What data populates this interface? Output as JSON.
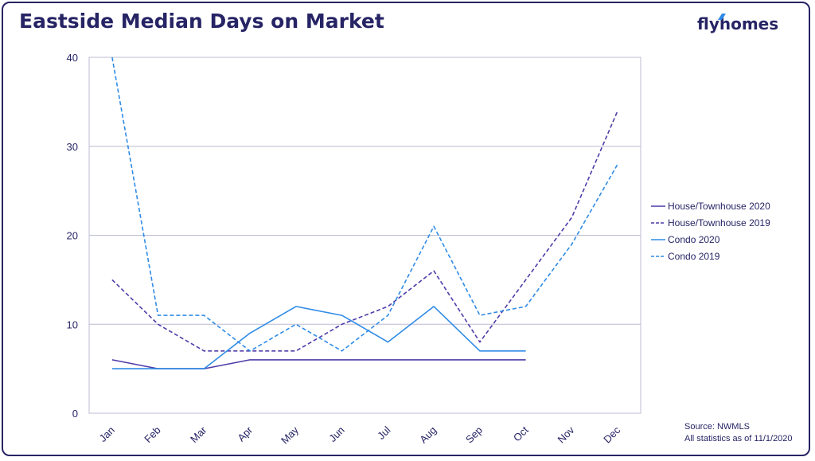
{
  "title": "Eastside Median Days on Market",
  "logo": "flyhomes",
  "source_lines": [
    "Source: NWMLS",
    "All statistics as of 11/1/2020"
  ],
  "colors": {
    "frame": "#262465",
    "house": "#4f3ba8",
    "condo": "#2f8be6",
    "grid": "#bcbcd4"
  },
  "chart_data": {
    "type": "line",
    "title": "Eastside Median Days on Market",
    "categories": [
      "Jan",
      "Feb",
      "Mar",
      "Apr",
      "May",
      "Jun",
      "Jul",
      "Aug",
      "Sep",
      "Oct",
      "Nov",
      "Dec"
    ],
    "ylim": [
      0,
      40
    ],
    "yticks": [
      0,
      10,
      20,
      30,
      40
    ],
    "grid": true,
    "legend": "right",
    "series": [
      {
        "name": "House/Townhouse 2020",
        "color": "#4f3ba8",
        "dashed": false,
        "values": [
          6,
          5,
          5,
          6,
          6,
          6,
          6,
          6,
          6,
          6,
          null,
          null
        ]
      },
      {
        "name": "House/Townhouse 2019",
        "color": "#4f3ba8",
        "dashed": true,
        "values": [
          15,
          10,
          7,
          7,
          7,
          10,
          12,
          16,
          8,
          15,
          22,
          34
        ]
      },
      {
        "name": "Condo 2020",
        "color": "#2f8be6",
        "dashed": false,
        "values": [
          5,
          5,
          5,
          9,
          12,
          11,
          8,
          12,
          7,
          7,
          null,
          null
        ]
      },
      {
        "name": "Condo 2019",
        "color": "#2f8be6",
        "dashed": true,
        "values": [
          40,
          11,
          11,
          7,
          10,
          7,
          11,
          21,
          11,
          12,
          19,
          28
        ]
      }
    ]
  }
}
